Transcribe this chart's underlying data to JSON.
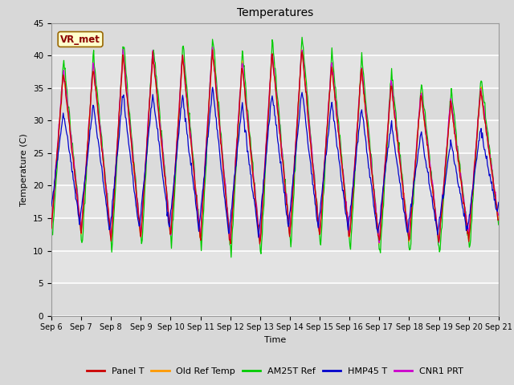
{
  "title": "Temperatures",
  "xlabel": "Time",
  "ylabel": "Temperature (C)",
  "ylim": [
    0,
    45
  ],
  "yticks": [
    0,
    5,
    10,
    15,
    20,
    25,
    30,
    35,
    40,
    45
  ],
  "n_days": 15,
  "series_colors": {
    "Panel T": "#cc0000",
    "Old Ref Temp": "#ff9900",
    "AM25T Ref": "#00cc00",
    "HMP45 T": "#0000cc",
    "CNR1 PRT": "#cc00cc"
  },
  "annotation_text": "VR_met",
  "bg_color": "#d8d8d8",
  "plot_bg_color": "#e8e8e8",
  "inner_bg_color": "#dcdcdc",
  "grid_color": "#ffffff",
  "title_fontsize": 10,
  "label_fontsize": 8,
  "tick_fontsize": 7.5,
  "legend_fontsize": 8
}
